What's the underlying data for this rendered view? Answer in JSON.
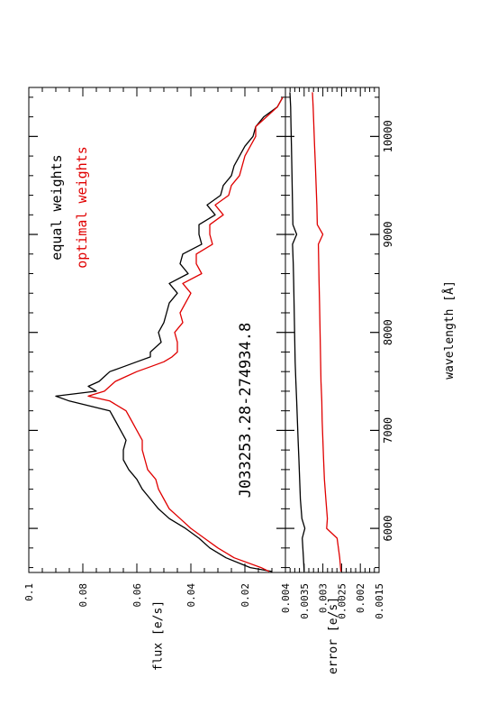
{
  "figure": {
    "object_label": "J033253.28-274934.8",
    "xlabel": "wavelength [Å]"
  },
  "chart_data": [
    {
      "type": "line",
      "panel": "flux",
      "ylabel": "flux [e/s]",
      "xlim": [
        5550,
        10500
      ],
      "ylim": [
        0.005,
        0.1
      ],
      "x_ticks": [
        6000,
        7000,
        8000,
        9000,
        10000
      ],
      "y_ticks": [
        0.02,
        0.04,
        0.06,
        0.08,
        0.1
      ],
      "y_tick_labels": [
        "0.02",
        "0.04",
        "0.06",
        "0.08",
        "0.1"
      ],
      "legend": "top-right",
      "series": [
        {
          "name": "equal weights",
          "color": "#000000",
          "x": [
            5560,
            5600,
            5700,
            5800,
            5900,
            6000,
            6100,
            6200,
            6300,
            6400,
            6500,
            6600,
            6700,
            6800,
            6900,
            7000,
            7100,
            7200,
            7300,
            7350,
            7400,
            7450,
            7500,
            7550,
            7600,
            7650,
            7700,
            7750,
            7800,
            7900,
            8000,
            8100,
            8200,
            8300,
            8400,
            8500,
            8600,
            8700,
            8800,
            8900,
            9000,
            9100,
            9200,
            9300,
            9400,
            9500,
            9600,
            9700,
            9800,
            9900,
            10000,
            10100,
            10200,
            10300,
            10400
          ],
          "y": [
            0.01,
            0.018,
            0.027,
            0.033,
            0.037,
            0.042,
            0.048,
            0.052,
            0.055,
            0.058,
            0.06,
            0.063,
            0.065,
            0.065,
            0.064,
            0.066,
            0.068,
            0.07,
            0.085,
            0.09,
            0.075,
            0.078,
            0.074,
            0.072,
            0.07,
            0.065,
            0.06,
            0.055,
            0.055,
            0.051,
            0.052,
            0.05,
            0.049,
            0.048,
            0.045,
            0.048,
            0.041,
            0.044,
            0.043,
            0.036,
            0.037,
            0.037,
            0.031,
            0.034,
            0.029,
            0.028,
            0.025,
            0.024,
            0.022,
            0.02,
            0.017,
            0.016,
            0.013,
            0.008,
            0.006
          ]
        },
        {
          "name": "optimal weights",
          "color": "#e00000",
          "x": [
            5560,
            5600,
            5700,
            5800,
            5900,
            6000,
            6100,
            6200,
            6300,
            6400,
            6500,
            6600,
            6700,
            6800,
            6900,
            7000,
            7100,
            7200,
            7300,
            7350,
            7400,
            7450,
            7500,
            7550,
            7600,
            7650,
            7700,
            7750,
            7800,
            7900,
            8000,
            8100,
            8200,
            8300,
            8400,
            8500,
            8600,
            8700,
            8800,
            8900,
            9000,
            9100,
            9200,
            9300,
            9400,
            9500,
            9600,
            9700,
            9800,
            9900,
            10000,
            10100,
            10200,
            10300,
            10400
          ],
          "y": [
            0.011,
            0.014,
            0.024,
            0.03,
            0.035,
            0.04,
            0.044,
            0.048,
            0.05,
            0.052,
            0.053,
            0.056,
            0.057,
            0.058,
            0.058,
            0.06,
            0.062,
            0.064,
            0.07,
            0.078,
            0.072,
            0.07,
            0.068,
            0.064,
            0.06,
            0.055,
            0.05,
            0.047,
            0.045,
            0.045,
            0.046,
            0.043,
            0.044,
            0.042,
            0.04,
            0.043,
            0.036,
            0.038,
            0.038,
            0.032,
            0.033,
            0.033,
            0.028,
            0.031,
            0.026,
            0.025,
            0.022,
            0.021,
            0.02,
            0.018,
            0.016,
            0.016,
            0.012,
            0.008,
            0.006
          ]
        }
      ]
    },
    {
      "type": "line",
      "panel": "error",
      "ylabel": "error [e/s]",
      "xlim": [
        5550,
        10500
      ],
      "ylim": [
        0.0015,
        0.004
      ],
      "x_ticks": [
        6000,
        7000,
        8000,
        9000,
        10000
      ],
      "y_ticks": [
        0.0015,
        0.002,
        0.0025,
        0.003,
        0.0035,
        0.004
      ],
      "y_tick_labels": [
        "0.0015",
        "0.002",
        "0.0025",
        "0.003",
        "0.0035",
        "0.004"
      ],
      "x_tick_labels": [
        "6000",
        "7000",
        "8000",
        "9000",
        "10000"
      ],
      "series": [
        {
          "name": "equal weights",
          "color": "#000000",
          "x": [
            5560,
            5700,
            5900,
            6000,
            6100,
            6300,
            6500,
            6700,
            6900,
            7100,
            7300,
            7500,
            7700,
            7900,
            8100,
            8300,
            8500,
            8700,
            8900,
            9000,
            9100,
            9300,
            9500,
            9700,
            9900,
            10100,
            10300,
            10450
          ],
          "y": [
            0.0035,
            0.00352,
            0.00355,
            0.00348,
            0.00356,
            0.0036,
            0.00362,
            0.00364,
            0.00366,
            0.00368,
            0.0037,
            0.00372,
            0.00374,
            0.00375,
            0.00376,
            0.00377,
            0.00378,
            0.00379,
            0.00381,
            0.0037,
            0.0038,
            0.00381,
            0.00382,
            0.00383,
            0.00384,
            0.00385,
            0.00386,
            0.00388
          ]
        },
        {
          "name": "optimal weights",
          "color": "#e00000",
          "x": [
            5560,
            5700,
            5900,
            6000,
            6100,
            6300,
            6500,
            6700,
            6900,
            7100,
            7300,
            7500,
            7700,
            7900,
            8100,
            8300,
            8500,
            8700,
            8900,
            9000,
            9100,
            9300,
            9500,
            9700,
            9900,
            10100,
            10300,
            10450
          ],
          "y": [
            0.00252,
            0.00255,
            0.00262,
            0.0029,
            0.00288,
            0.00292,
            0.00296,
            0.00298,
            0.003,
            0.00302,
            0.00303,
            0.00305,
            0.00306,
            0.00307,
            0.00308,
            0.00309,
            0.0031,
            0.00311,
            0.00312,
            0.003,
            0.00315,
            0.00316,
            0.00318,
            0.0032,
            0.00322,
            0.00324,
            0.00326,
            0.00328
          ]
        }
      ]
    }
  ]
}
